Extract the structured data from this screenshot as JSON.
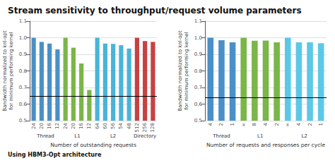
{
  "chart_data": [
    {
      "type": "bar",
      "title": "Stream sensitivity to throughput/request volume parameters",
      "subtitle": "Using HBM3-Opt architecture",
      "xlabel": "Number of outstanding requests",
      "ylabel": "Bandwidth normalized to knl-opt\nfor minimum performing kernel",
      "series": [
        {
          "name": "Thread",
          "color": "#4a90c8",
          "categories": [
            "24",
            "20",
            "16",
            "12"
          ],
          "values": [
            1.0,
            0.975,
            0.965,
            0.93
          ]
        },
        {
          "name": "L1",
          "color": "#7ab648",
          "categories": [
            "24",
            "20",
            "16",
            "12"
          ],
          "values": [
            1.0,
            0.94,
            0.845,
            0.685
          ]
        },
        {
          "name": "L2",
          "color": "#4ab4d8",
          "categories": [
            "64",
            "60",
            "56",
            "54",
            "48"
          ],
          "values": [
            1.0,
            0.965,
            0.963,
            0.955,
            0.935
          ]
        },
        {
          "name": "Directory",
          "color": "#c94040",
          "categories": [
            "512",
            "256",
            "128"
          ],
          "values": [
            1.0,
            0.98,
            0.975
          ]
        }
      ],
      "hline": 0.65,
      "ylim": [
        0.5,
        1.1
      ],
      "yticks": [
        0.5,
        0.6,
        0.7,
        0.8,
        0.9,
        {
          "value": 1.0,
          "label": "1.0"
        },
        1.1
      ],
      "grid": true
    },
    {
      "type": "bar",
      "xlabel": "Number of requests and responses per cycle",
      "ylabel": "Bandwidth normalized to knl-opt\nfor minimum performing kernel",
      "series": [
        {
          "name": "Thread",
          "color": "#4a90c8",
          "categories": [
            "4",
            "2",
            "1"
          ],
          "values": [
            1.0,
            0.985,
            0.972
          ]
        },
        {
          "name": "L1",
          "color": "#7ab648",
          "categories": [
            "∞",
            "8",
            "4",
            "2"
          ],
          "values": [
            1.0,
            0.982,
            0.983,
            0.972
          ]
        },
        {
          "name": "L2",
          "color": "#5bc8e8",
          "categories": [
            "∞",
            "4",
            "2",
            "1"
          ],
          "values": [
            1.0,
            0.972,
            0.972,
            0.967
          ]
        }
      ],
      "hline": 0.64,
      "ylim": [
        0.5,
        1.1
      ],
      "yticks": [
        0.5,
        0.6,
        0.7,
        0.8,
        0.9,
        {
          "value": 1.0,
          "label": "1.0"
        },
        1.1
      ],
      "grid": true
    }
  ]
}
